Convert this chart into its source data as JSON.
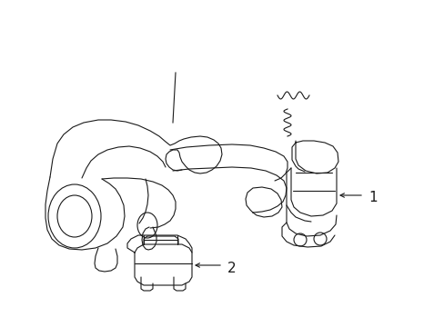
{
  "background_color": "#ffffff",
  "line_color": "#1a1a1a",
  "line_width": 0.8,
  "fig_width": 4.89,
  "fig_height": 3.6,
  "dpi": 100,
  "label_1_text": "1",
  "label_2_text": "2"
}
